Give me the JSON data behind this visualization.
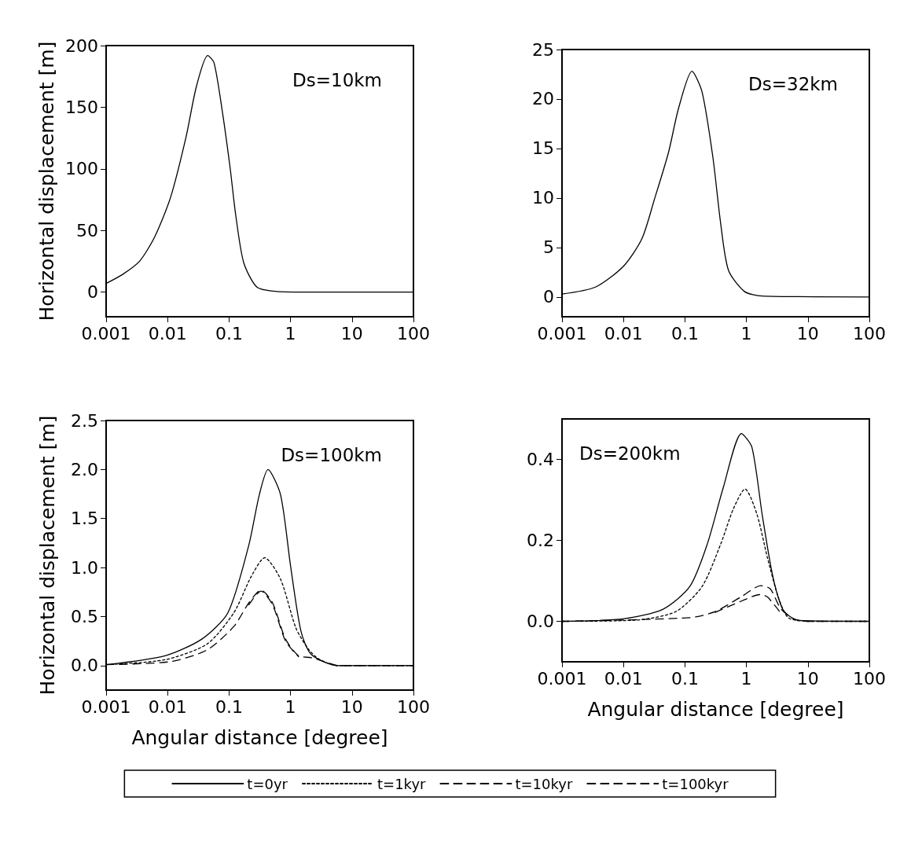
{
  "chart_data": [
    {
      "type": "line",
      "log": "x",
      "marker": "none",
      "ylabel": "Horizontal displacement [m]",
      "annotations": [
        "Ds=10km"
      ],
      "xlim": [
        0.001,
        100
      ],
      "xticks": [
        0.001,
        0.01,
        0.1,
        1,
        10,
        100
      ],
      "ylim": [
        -20,
        200
      ],
      "yticks": [
        0,
        50,
        100,
        150,
        200
      ],
      "grid": false,
      "series": [
        {
          "color": "#000000",
          "line_style": "solid",
          "x": [
            0.001,
            0.0019,
            0.0035,
            0.0062,
            0.0112,
            0.02,
            0.0295,
            0.045,
            0.057,
            0.077,
            0.104,
            0.128,
            0.173,
            0.285,
            0.6,
            2,
            100
          ],
          "values": [
            7,
            14.7,
            25,
            45,
            77,
            126,
            167,
            192,
            186,
            148,
            101,
            63,
            24,
            4,
            0.5,
            0,
            0
          ]
        }
      ]
    },
    {
      "type": "line",
      "log": "x",
      "marker": "none",
      "annotations": [
        "Ds=32km"
      ],
      "xlim": [
        0.001,
        100
      ],
      "xticks": [
        0.001,
        0.01,
        0.1,
        1,
        10,
        100
      ],
      "ylim": [
        -2,
        25
      ],
      "yticks": [
        0,
        5,
        10,
        15,
        20,
        25
      ],
      "grid": false,
      "series": [
        {
          "color": "#000000",
          "line_style": "solid",
          "x": [
            0.001,
            0.0035,
            0.01,
            0.02,
            0.032,
            0.054,
            0.079,
            0.13,
            0.19,
            0.285,
            0.38,
            0.51,
            0.93,
            1.8,
            100
          ],
          "values": [
            0.3,
            1.0,
            3.1,
            5.9,
            9.9,
            14.6,
            19.1,
            22.8,
            20.7,
            14.1,
            7.5,
            2.7,
            0.55,
            0.1,
            0
          ]
        }
      ]
    },
    {
      "type": "line",
      "log": "x",
      "marker": "none",
      "xlabel": "Angular distance [degree]",
      "ylabel": "Horizontal displacement [m]",
      "annotations": [
        "Ds=100km"
      ],
      "legend": "bottom",
      "xlim": [
        0.001,
        100
      ],
      "xticks": [
        0.001,
        0.01,
        0.1,
        1,
        10,
        100
      ],
      "ylim": [
        -0.25,
        2.5
      ],
      "yticks": [
        {
          "value": 0,
          "label": "0.0"
        },
        0.5,
        {
          "value": 1,
          "label": "1.0"
        },
        1.5,
        {
          "value": 2,
          "label": "2.0"
        },
        2.5
      ],
      "grid": false,
      "series": [
        {
          "name": "t=0yr",
          "color": "#000000",
          "line_style": "solid",
          "x": [
            0.001,
            0.0091,
            0.036,
            0.096,
            0.21,
            0.31,
            0.43,
            0.69,
            1.0,
            1.48,
            2.2,
            5.9,
            100
          ],
          "values": [
            0.01,
            0.1,
            0.27,
            0.54,
            1.23,
            1.74,
            2.0,
            1.74,
            1.02,
            0.35,
            0.11,
            0,
            0
          ]
        },
        {
          "name": "t=1kyr",
          "color": "#000000",
          "line_style": "dotted",
          "x": [
            0.001,
            0.0091,
            0.044,
            0.12,
            0.23,
            0.38,
            0.69,
            1.23,
            2.0,
            3.0,
            5.9,
            100
          ],
          "values": [
            0.01,
            0.06,
            0.22,
            0.54,
            0.91,
            1.1,
            0.88,
            0.38,
            0.16,
            0.06,
            0,
            0
          ]
        },
        {
          "name": "t=10kyr",
          "color": "#000000",
          "line_style": "dashed",
          "x": [
            0.001,
            0.011,
            0.044,
            0.12,
            0.21,
            0.33,
            0.51,
            0.83,
            1.35,
            2.2,
            4.0,
            5.9,
            100
          ],
          "values": [
            0.01,
            0.04,
            0.16,
            0.4,
            0.64,
            0.77,
            0.64,
            0.27,
            0.1,
            0.08,
            0.03,
            0,
            0
          ]
        },
        {
          "name": "t=100kyr",
          "color": "#000000",
          "line_style": "dashed",
          "x": [
            0.21,
            0.33,
            0.51,
            0.83,
            1.35
          ],
          "values": [
            0.62,
            0.76,
            0.62,
            0.25,
            0.09
          ]
        }
      ]
    },
    {
      "type": "line",
      "log": "x",
      "marker": "none",
      "xlabel": "Angular distance [degree]",
      "annotations": [
        "Ds=200km"
      ],
      "xlim": [
        0.001,
        100
      ],
      "xticks": [
        0.001,
        0.01,
        0.1,
        1,
        10,
        100
      ],
      "ylim": [
        -0.1,
        0.5
      ],
      "yticks": [
        {
          "value": 0,
          "label": "0.0"
        },
        0.2,
        0.4
      ],
      "grid": false,
      "series": [
        {
          "color": "#000000",
          "line_style": "solid",
          "x": [
            0.001,
            0.01,
            0.044,
            0.12,
            0.23,
            0.42,
            0.83,
            1.23,
            1.82,
            2.7,
            4.0,
            7.2,
            100
          ],
          "values": [
            0,
            0.006,
            0.03,
            0.086,
            0.19,
            0.33,
            0.464,
            0.43,
            0.26,
            0.11,
            0.027,
            0.002,
            0
          ]
        },
        {
          "color": "#000000",
          "line_style": "dotted",
          "x": [
            0.001,
            0.016,
            0.071,
            0.19,
            0.38,
            0.61,
            0.95,
            1.48,
            2.2,
            3.3,
            4.8,
            10,
            100
          ],
          "values": [
            0,
            0.003,
            0.024,
            0.086,
            0.19,
            0.277,
            0.327,
            0.265,
            0.157,
            0.06,
            0.009,
            0,
            0
          ]
        },
        {
          "color": "#000000",
          "line_style": "dashed",
          "x": [
            0.001,
            0.12,
            0.31,
            0.83,
            1.72,
            2.45,
            3.6,
            5.9,
            10,
            100
          ],
          "values": [
            0,
            0.009,
            0.024,
            0.061,
            0.088,
            0.08,
            0.032,
            0.006,
            0,
            0
          ]
        },
        {
          "color": "#000000",
          "line_style": "dashed",
          "x": [
            0.31,
            0.83,
            1.66,
            2.2,
            3.6
          ],
          "values": [
            0.022,
            0.05,
            0.066,
            0.06,
            0.021
          ]
        }
      ]
    }
  ]
}
